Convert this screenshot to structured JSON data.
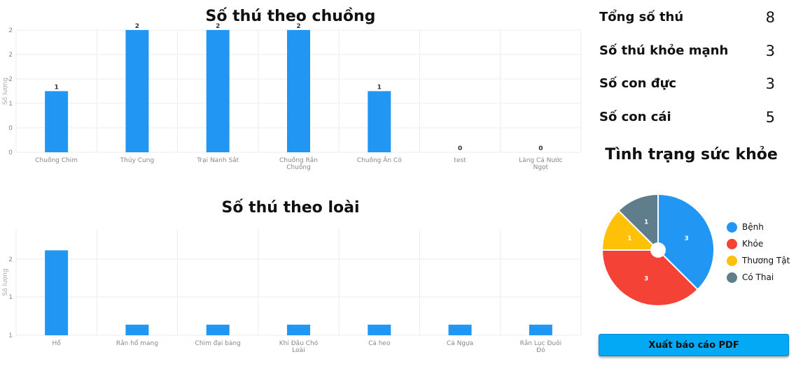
{
  "colors": {
    "bar": "#2196f3",
    "grid": "#ececec",
    "axis_text": "#888888",
    "button": "#03a9f4"
  },
  "chart_data": [
    {
      "type": "bar",
      "title": "Số thú theo chuồng",
      "ylabel": "Số lượng",
      "xlabel": "",
      "ylim": [
        0,
        2
      ],
      "y_tick_labels": [
        "0",
        "0",
        "1",
        "2",
        "2",
        "2"
      ],
      "categories": [
        "Chuồng Chim",
        "Thủy Cung",
        "Trại Nanh Sắt",
        "Chuồng Rắn Chuồng",
        "Chuồng Ăn Cỏ",
        "test",
        "Làng Cá Nước Ngọt"
      ],
      "values": [
        1,
        2,
        2,
        2,
        1,
        0,
        0
      ],
      "data_labels": [
        "1",
        "2",
        "2",
        "2",
        "1",
        "0",
        "0"
      ],
      "grid": true
    },
    {
      "type": "bar",
      "title": "Số thú theo loài",
      "ylabel": "Số lượng",
      "xlabel": "",
      "ylim": [
        0.8,
        2.8
      ],
      "y_tick_labels": [
        "1",
        "1",
        "2"
      ],
      "categories": [
        "Hổ",
        "Rắn hổ mang",
        "Chim đại bàng",
        "Khỉ Đầu Chó Loài",
        "Cá heo",
        "Cá Ngựa",
        "Rắn Lục Đuôi Đỏ"
      ],
      "values": [
        2.4,
        1,
        1,
        1,
        1,
        1,
        1
      ],
      "grid": true
    },
    {
      "type": "pie",
      "title": "Tình trạng sức khỏe",
      "categories": [
        "Bệnh",
        "Khỏe",
        "Thương Tật",
        "Có Thai"
      ],
      "values": [
        3,
        3,
        1,
        1
      ],
      "colors": [
        "#2196f3",
        "#f44336",
        "#ffc107",
        "#607d8b"
      ],
      "legend": "right"
    }
  ],
  "stats": [
    {
      "label": "Tổng số thú",
      "value": "8"
    },
    {
      "label": "Số thú khỏe mạnh",
      "value": "3"
    },
    {
      "label": "Số con đực",
      "value": "3"
    },
    {
      "label": "Số con cái",
      "value": "5"
    }
  ],
  "export_button": {
    "label": "Xuất báo cáo PDF"
  }
}
